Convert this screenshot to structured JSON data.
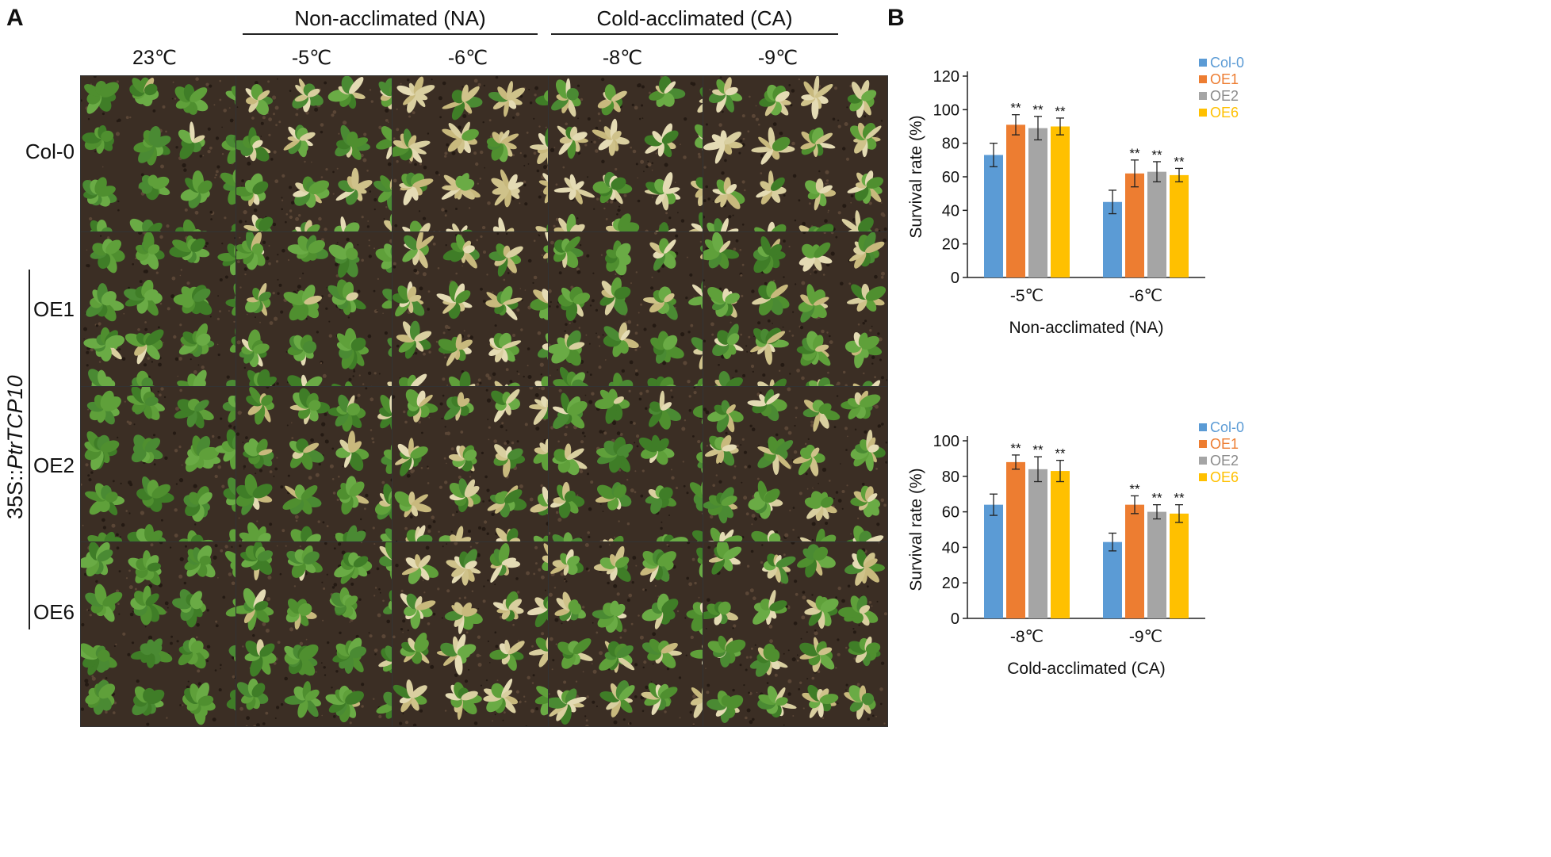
{
  "panel_a": {
    "letter": "A",
    "groups": [
      {
        "label": "Non-acclimated (NA)"
      },
      {
        "label": "Cold-acclimated (CA)"
      }
    ],
    "temperatures": [
      "23℃",
      "-5℃",
      "-6℃",
      "-8℃",
      "-9℃"
    ],
    "rows": [
      "Col-0",
      "OE1",
      "OE2",
      "OE6"
    ],
    "construct_label_prefix": "35S::",
    "construct_label_gene": "PtrTCP10",
    "photos": [
      [
        {
          "damage": 0.02
        },
        {
          "damage": 0.45
        },
        {
          "damage": 0.7
        },
        {
          "damage": 0.55
        },
        {
          "damage": 0.6
        }
      ],
      [
        {
          "damage": 0.02
        },
        {
          "damage": 0.12
        },
        {
          "damage": 0.45
        },
        {
          "damage": 0.2
        },
        {
          "damage": 0.35
        }
      ],
      [
        {
          "damage": 0.02
        },
        {
          "damage": 0.2
        },
        {
          "damage": 0.5
        },
        {
          "damage": 0.18
        },
        {
          "damage": 0.35
        }
      ],
      [
        {
          "damage": 0.02
        },
        {
          "damage": 0.12
        },
        {
          "damage": 0.55
        },
        {
          "damage": 0.4
        },
        {
          "damage": 0.45
        }
      ]
    ]
  },
  "panel_b_letter": "B",
  "chart_data": [
    {
      "type": "bar",
      "categories": [
        "-5℃",
        "-6℃"
      ],
      "xlabel": "Non-acclimated (NA)",
      "ylabel": "Survival rate (%)",
      "ylim": [
        0,
        120
      ],
      "yticks": [
        0,
        20,
        40,
        60,
        80,
        100,
        120
      ],
      "legend_position": "top-right",
      "series": [
        {
          "name": "Col-0",
          "color": "#5b9bd5",
          "values": [
            73,
            45
          ],
          "errors": [
            7,
            7
          ],
          "marks": [
            "",
            ""
          ]
        },
        {
          "name": "OE1",
          "color": "#ed7d31",
          "values": [
            91,
            62
          ],
          "errors": [
            6,
            8
          ],
          "marks": [
            "**",
            "**"
          ]
        },
        {
          "name": "OE2",
          "color": "#a5a5a5",
          "values": [
            89,
            63
          ],
          "errors": [
            7,
            6
          ],
          "marks": [
            "**",
            "**"
          ]
        },
        {
          "name": "OE6",
          "color": "#ffc000",
          "values": [
            90,
            61
          ],
          "errors": [
            5,
            4
          ],
          "marks": [
            "**",
            "**"
          ]
        }
      ]
    },
    {
      "type": "bar",
      "categories": [
        "-8℃",
        "-9℃"
      ],
      "xlabel": "Cold-acclimated (CA)",
      "ylabel": "Survival rate (%)",
      "ylim": [
        0,
        100
      ],
      "yticks": [
        0,
        20,
        40,
        60,
        80,
        100
      ],
      "legend_position": "top-right",
      "series": [
        {
          "name": "Col-0",
          "color": "#5b9bd5",
          "values": [
            64,
            43
          ],
          "errors": [
            6,
            5
          ],
          "marks": [
            "",
            ""
          ]
        },
        {
          "name": "OE1",
          "color": "#ed7d31",
          "values": [
            88,
            64
          ],
          "errors": [
            4,
            5
          ],
          "marks": [
            "**",
            "**"
          ]
        },
        {
          "name": "OE2",
          "color": "#a5a5a5",
          "values": [
            84,
            60
          ],
          "errors": [
            7,
            4
          ],
          "marks": [
            "**",
            "**"
          ]
        },
        {
          "name": "OE6",
          "color": "#ffc000",
          "values": [
            83,
            59
          ],
          "errors": [
            6,
            5
          ],
          "marks": [
            "**",
            "**"
          ]
        }
      ]
    }
  ]
}
